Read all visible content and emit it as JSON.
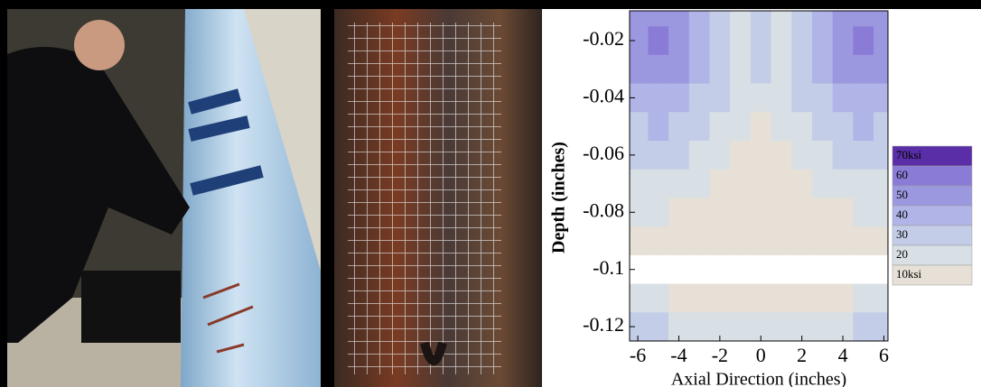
{
  "chart_data": {
    "type": "contour",
    "xlabel": "Axial Direction (inches)",
    "ylabel": "Depth (inches)",
    "xlim": [
      -6.4,
      6.2
    ],
    "ylim": [
      -0.125,
      -0.0096
    ],
    "xticks": [
      -6,
      -4,
      -2,
      0,
      2,
      4,
      6
    ],
    "yticks": [
      -0.02,
      -0.04,
      -0.06,
      -0.08,
      -0.1,
      -0.12
    ],
    "x": [
      -6,
      -5,
      -4,
      -3,
      -2,
      -1,
      0,
      1,
      2,
      3,
      4,
      5,
      6
    ],
    "y": [
      -0.01,
      -0.02,
      -0.03,
      -0.04,
      -0.05,
      -0.06,
      -0.07,
      -0.08,
      -0.09,
      -0.1,
      -0.11,
      -0.12
    ],
    "z": [
      [
        50,
        55,
        50,
        40,
        30,
        20,
        30,
        20,
        30,
        40,
        50,
        50,
        50
      ],
      [
        55,
        65,
        55,
        45,
        30,
        20,
        30,
        20,
        30,
        45,
        55,
        60,
        55
      ],
      [
        50,
        55,
        50,
        40,
        30,
        20,
        30,
        20,
        30,
        40,
        50,
        55,
        50
      ],
      [
        40,
        45,
        40,
        35,
        30,
        20,
        20,
        20,
        30,
        35,
        40,
        45,
        40
      ],
      [
        35,
        40,
        35,
        30,
        20,
        20,
        10,
        20,
        20,
        30,
        35,
        40,
        35
      ],
      [
        30,
        30,
        30,
        20,
        20,
        10,
        10,
        10,
        20,
        20,
        30,
        30,
        30
      ],
      [
        20,
        25,
        20,
        20,
        10,
        10,
        10,
        10,
        10,
        20,
        20,
        25,
        20
      ],
      [
        20,
        20,
        10,
        10,
        10,
        10,
        10,
        10,
        10,
        10,
        10,
        20,
        20
      ],
      [
        10,
        10,
        10,
        10,
        10,
        10,
        10,
        10,
        10,
        10,
        10,
        10,
        10
      ],
      [
        5,
        5,
        5,
        5,
        5,
        5,
        5,
        5,
        5,
        5,
        5,
        5,
        5
      ],
      [
        20,
        20,
        10,
        10,
        10,
        10,
        10,
        10,
        10,
        10,
        10,
        20,
        20
      ],
      [
        30,
        30,
        20,
        20,
        20,
        20,
        20,
        20,
        20,
        20,
        20,
        30,
        30
      ]
    ],
    "legend": [
      {
        "label": "70ksi",
        "value": 70,
        "color": "#5a2ea6"
      },
      {
        "label": "60",
        "value": 60,
        "color": "#8a7cd6"
      },
      {
        "label": "50",
        "value": 50,
        "color": "#9c98e0"
      },
      {
        "label": "40",
        "value": 40,
        "color": "#b0b4e6"
      },
      {
        "label": "30",
        "value": 30,
        "color": "#c4cde8"
      },
      {
        "label": "20",
        "value": 20,
        "color": "#d8e0e6"
      },
      {
        "label": "10ksi",
        "value": 10,
        "color": "#e6e0d6"
      }
    ]
  }
}
